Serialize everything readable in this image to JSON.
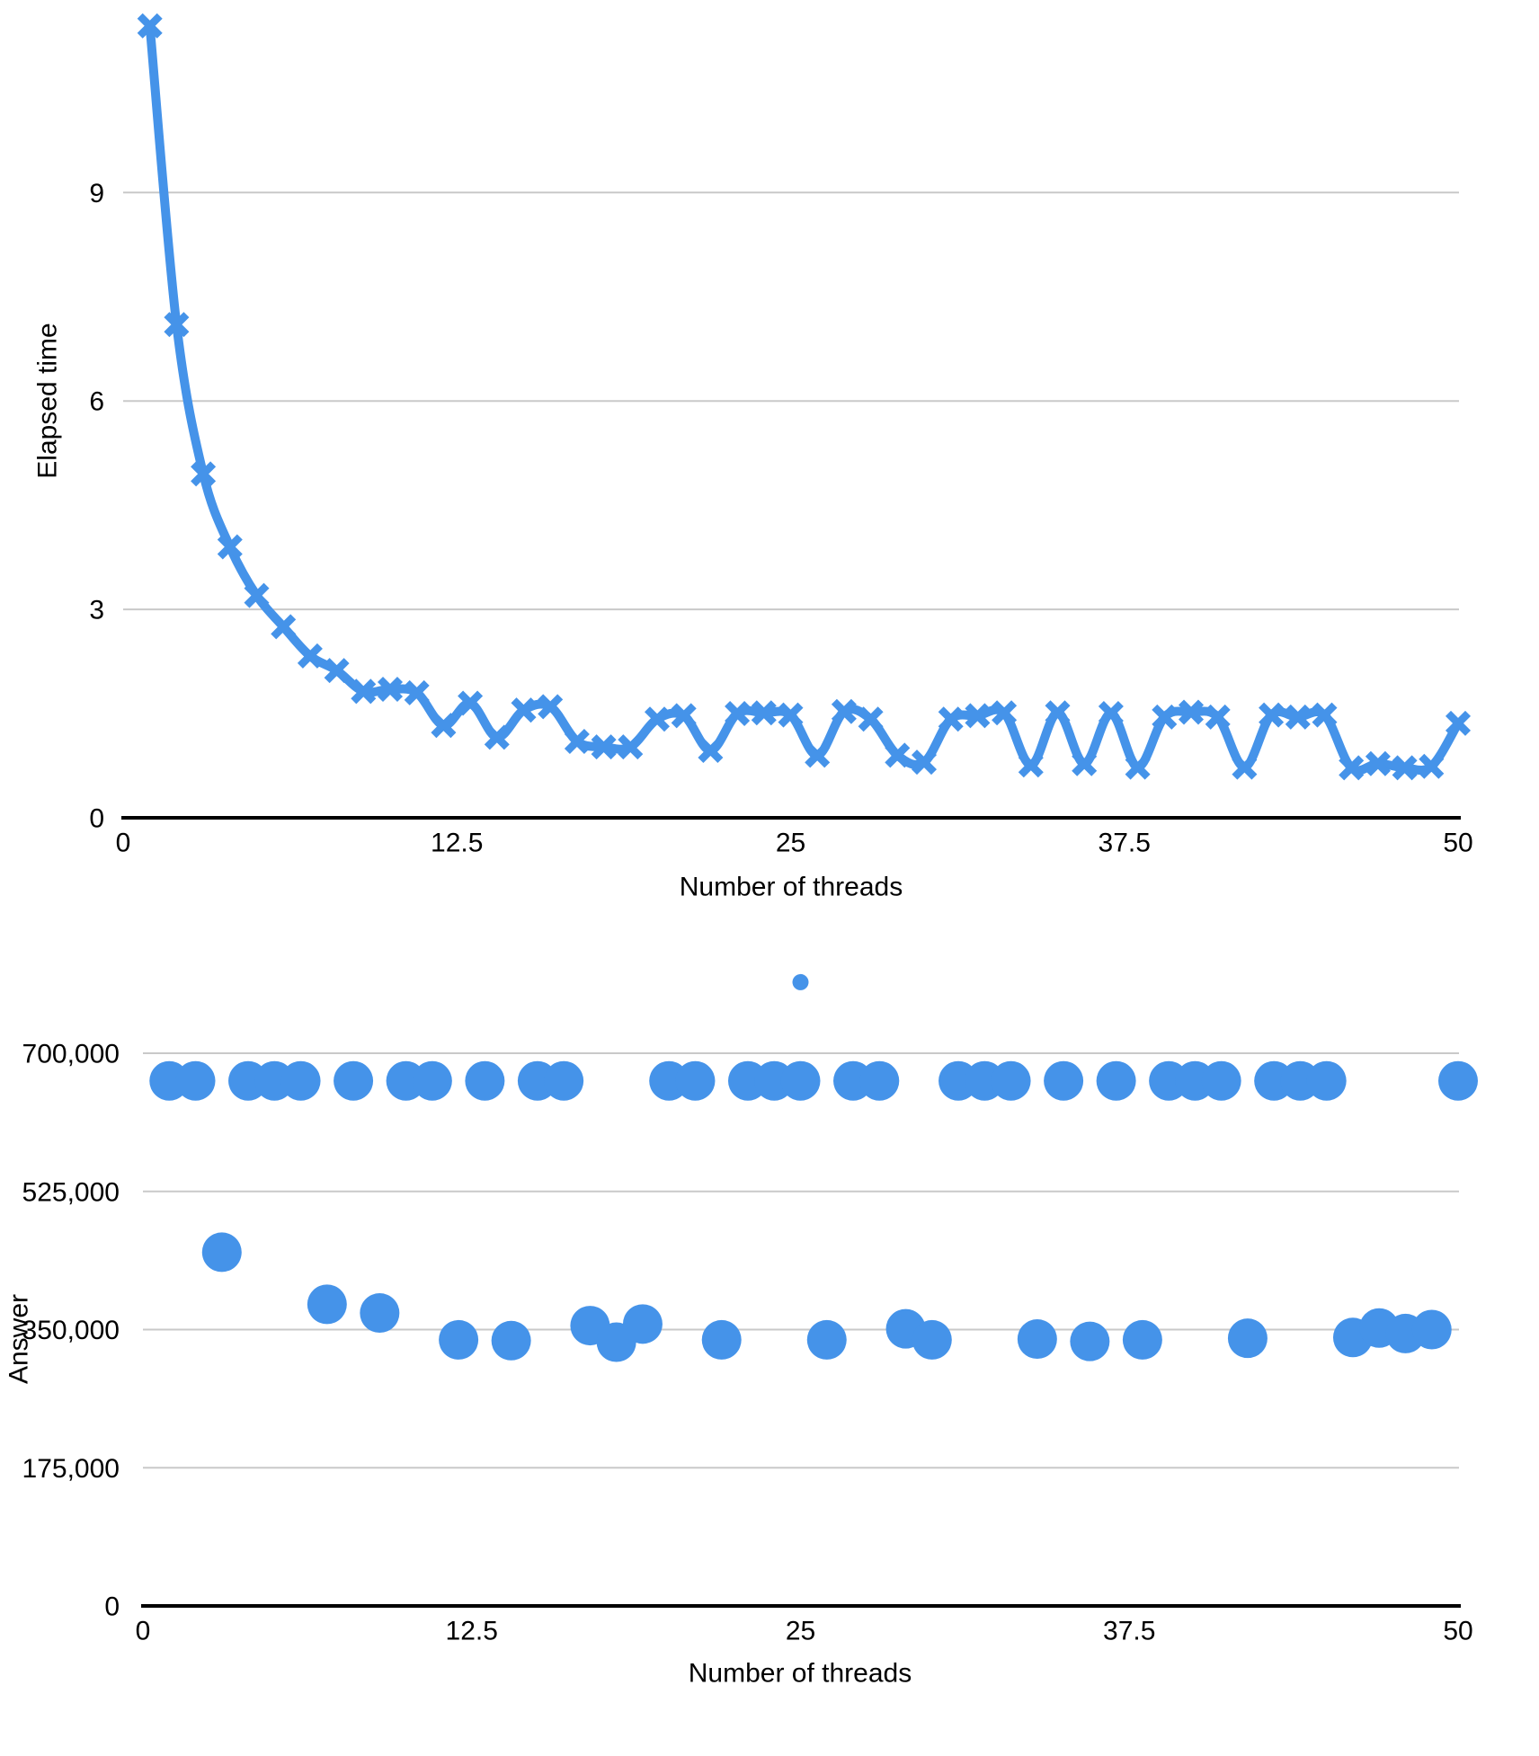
{
  "accent_color": "#4593e9",
  "grid_color": "#c9c9c9",
  "axis_color": "#000000",
  "chart_data": [
    {
      "type": "line",
      "title": "",
      "xlabel": "Number of threads",
      "ylabel": "Elapsed time",
      "legend": "none",
      "grid": true,
      "smooth": true,
      "marker": "x",
      "x_range": [
        0,
        50
      ],
      "y_range": [
        0,
        11.8
      ],
      "x_ticks": [
        {
          "v": 0,
          "label": "0"
        },
        {
          "v": 12.5,
          "label": "12.5"
        },
        {
          "v": 25,
          "label": "25"
        },
        {
          "v": 37.5,
          "label": "37.5"
        },
        {
          "v": 50,
          "label": "50"
        }
      ],
      "y_ticks": [
        {
          "v": 0,
          "label": "0"
        },
        {
          "v": 3,
          "label": "3"
        },
        {
          "v": 6,
          "label": "6"
        },
        {
          "v": 9,
          "label": "9"
        }
      ],
      "x": [
        1,
        2,
        3,
        4,
        5,
        6,
        7,
        8,
        9,
        10,
        11,
        12,
        13,
        14,
        15,
        16,
        17,
        18,
        19,
        20,
        21,
        22,
        23,
        24,
        25,
        26,
        27,
        28,
        29,
        30,
        31,
        32,
        33,
        34,
        35,
        36,
        37,
        38,
        39,
        40,
        41,
        42,
        43,
        44,
        45,
        46,
        47,
        48,
        49,
        50
      ],
      "values": [
        11.4,
        7.1,
        4.95,
        3.9,
        3.2,
        2.75,
        2.33,
        2.12,
        1.82,
        1.85,
        1.8,
        1.33,
        1.65,
        1.16,
        1.55,
        1.6,
        1.1,
        1.02,
        1.02,
        1.42,
        1.47,
        0.97,
        1.5,
        1.51,
        1.48,
        0.9,
        1.53,
        1.42,
        0.9,
        0.8,
        1.42,
        1.47,
        1.51,
        0.76,
        1.51,
        0.78,
        1.5,
        0.73,
        1.45,
        1.52,
        1.45,
        0.73,
        1.48,
        1.45,
        1.48,
        0.72,
        0.78,
        0.72,
        0.74,
        1.36
      ]
    },
    {
      "type": "scatter",
      "title": "",
      "xlabel": "Number of threads",
      "ylabel": "Answer",
      "legend": "none",
      "grid": true,
      "x_range": [
        0,
        50
      ],
      "y_range": [
        0,
        850000
      ],
      "x_ticks": [
        {
          "v": 0,
          "label": "0"
        },
        {
          "v": 12.5,
          "label": "12.5"
        },
        {
          "v": 25,
          "label": "25"
        },
        {
          "v": 37.5,
          "label": "37.5"
        },
        {
          "v": 50,
          "label": "50"
        }
      ],
      "y_ticks": [
        {
          "v": 0,
          "label": "0"
        },
        {
          "v": 175000,
          "label": "175,000"
        },
        {
          "v": 350000,
          "label": "350,000"
        },
        {
          "v": 525000,
          "label": "525,000"
        },
        {
          "v": 700000,
          "label": "700,000"
        }
      ],
      "x": [
        1,
        2,
        3,
        4,
        5,
        6,
        7,
        8,
        9,
        10,
        11,
        12,
        13,
        14,
        15,
        16,
        17,
        18,
        19,
        20,
        21,
        22,
        23,
        24,
        25,
        26,
        27,
        28,
        29,
        30,
        31,
        32,
        33,
        34,
        35,
        36,
        37,
        38,
        39,
        40,
        41,
        42,
        43,
        44,
        45,
        46,
        47,
        48,
        49,
        50
      ],
      "values": [
        665000,
        665000,
        448000,
        665000,
        665000,
        665000,
        382000,
        665000,
        371000,
        665000,
        665000,
        337000,
        665000,
        336000,
        665000,
        665000,
        355000,
        334000,
        357000,
        665000,
        665000,
        337000,
        665000,
        665000,
        665000,
        337000,
        665000,
        665000,
        351000,
        337000,
        665000,
        665000,
        665000,
        338000,
        665000,
        335000,
        665000,
        337000,
        665000,
        665000,
        665000,
        339000,
        665000,
        665000,
        665000,
        340000,
        352000,
        345000,
        350000,
        665000
      ],
      "outlier": {
        "x": 25,
        "value": 790000
      }
    }
  ]
}
